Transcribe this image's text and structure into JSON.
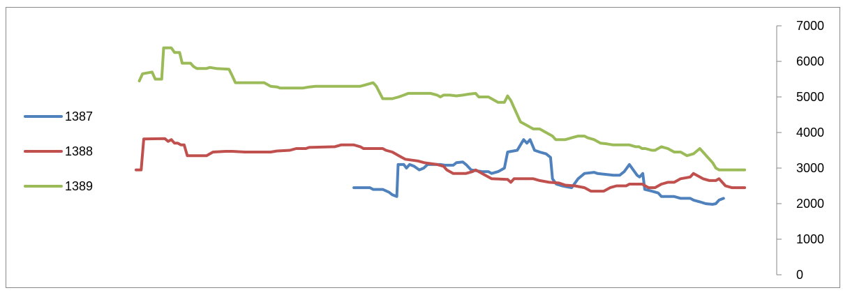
{
  "chart_data": {
    "type": "line",
    "title": "",
    "xlabel": "",
    "ylabel": "",
    "y_axis_side": "right",
    "ylim": [
      0,
      7000
    ],
    "yticks": [
      0,
      1000,
      2000,
      3000,
      4000,
      5000,
      6000,
      7000
    ],
    "ytick_labels": [
      "0",
      "1000",
      "2000",
      "3000",
      "4000",
      "5000",
      "6000",
      "7000"
    ],
    "x_index_range": [
      0,
      100
    ],
    "grid": false,
    "legend_position": "left",
    "series": [
      {
        "name": "1387",
        "color": "#4f81bd",
        "points": [
          [
            34.0,
            2450
          ],
          [
            36.5,
            2450
          ],
          [
            37.0,
            2400
          ],
          [
            38.5,
            2400
          ],
          [
            39.5,
            2320
          ],
          [
            40.0,
            2250
          ],
          [
            40.7,
            2200
          ],
          [
            40.9,
            3100
          ],
          [
            41.8,
            3100
          ],
          [
            42.2,
            3000
          ],
          [
            42.7,
            3100
          ],
          [
            43.4,
            3050
          ],
          [
            44.2,
            2950
          ],
          [
            44.9,
            3000
          ],
          [
            45.5,
            3100
          ],
          [
            47.5,
            3100
          ],
          [
            48.2,
            3080
          ],
          [
            49.5,
            3080
          ],
          [
            50.0,
            3150
          ],
          [
            51.0,
            3170
          ],
          [
            51.5,
            3100
          ],
          [
            52.3,
            2950
          ],
          [
            54.0,
            2900
          ],
          [
            55.0,
            2900
          ],
          [
            55.5,
            2850
          ],
          [
            56.5,
            2900
          ],
          [
            57.0,
            2950
          ],
          [
            57.5,
            3000
          ],
          [
            58.0,
            3450
          ],
          [
            59.5,
            3500
          ],
          [
            60.0,
            3650
          ],
          [
            60.5,
            3800
          ],
          [
            61.0,
            3700
          ],
          [
            61.5,
            3800
          ],
          [
            62.2,
            3500
          ],
          [
            63.0,
            3450
          ],
          [
            64.0,
            3400
          ],
          [
            64.7,
            3300
          ],
          [
            65.0,
            2700
          ],
          [
            65.6,
            2550
          ],
          [
            66.5,
            2500
          ],
          [
            68.0,
            2450
          ],
          [
            69.0,
            2700
          ],
          [
            70.0,
            2850
          ],
          [
            71.5,
            2880
          ],
          [
            72.0,
            2850
          ],
          [
            74.5,
            2800
          ],
          [
            75.5,
            2800
          ],
          [
            76.2,
            2900
          ],
          [
            77.0,
            3100
          ],
          [
            78.2,
            2800
          ],
          [
            78.6,
            2750
          ],
          [
            79.1,
            2850
          ],
          [
            79.4,
            2400
          ],
          [
            80.5,
            2350
          ],
          [
            81.5,
            2300
          ],
          [
            82.0,
            2200
          ],
          [
            84.0,
            2200
          ],
          [
            85.0,
            2150
          ],
          [
            86.5,
            2150
          ],
          [
            87.0,
            2100
          ],
          [
            88.0,
            2050
          ],
          [
            88.9,
            2000
          ],
          [
            90.0,
            1980
          ],
          [
            90.5,
            2000
          ],
          [
            91.0,
            2100
          ],
          [
            91.7,
            2150
          ]
        ]
      },
      {
        "name": "1388",
        "color": "#c0504d",
        "points": [
          [
            0,
            2950
          ],
          [
            0.8,
            2950
          ],
          [
            1.2,
            3820
          ],
          [
            4.5,
            3830
          ],
          [
            5.0,
            3750
          ],
          [
            5.5,
            3800
          ],
          [
            6.0,
            3700
          ],
          [
            6.5,
            3700
          ],
          [
            7.0,
            3650
          ],
          [
            7.5,
            3650
          ],
          [
            8.0,
            3350
          ],
          [
            11.0,
            3350
          ],
          [
            12.0,
            3450
          ],
          [
            14.0,
            3470
          ],
          [
            15.0,
            3470
          ],
          [
            17.0,
            3450
          ],
          [
            21.0,
            3450
          ],
          [
            22.0,
            3480
          ],
          [
            24.0,
            3500
          ],
          [
            25.0,
            3550
          ],
          [
            26.5,
            3550
          ],
          [
            27.0,
            3580
          ],
          [
            31.0,
            3600
          ],
          [
            32.0,
            3650
          ],
          [
            34.0,
            3650
          ],
          [
            35.0,
            3600
          ],
          [
            35.5,
            3550
          ],
          [
            38.5,
            3550
          ],
          [
            39.0,
            3500
          ],
          [
            40.0,
            3450
          ],
          [
            41.0,
            3350
          ],
          [
            42.0,
            3250
          ],
          [
            44.0,
            3200
          ],
          [
            45.0,
            3150
          ],
          [
            47.0,
            3100
          ],
          [
            48.0,
            3050
          ],
          [
            48.5,
            2950
          ],
          [
            49.5,
            2850
          ],
          [
            51.5,
            2850
          ],
          [
            52.5,
            2900
          ],
          [
            53.0,
            2950
          ],
          [
            53.5,
            2900
          ],
          [
            54.5,
            2800
          ],
          [
            55.5,
            2700
          ],
          [
            58.0,
            2680
          ],
          [
            58.5,
            2600
          ],
          [
            59.0,
            2700
          ],
          [
            62.0,
            2700
          ],
          [
            63.0,
            2650
          ],
          [
            64.5,
            2600
          ],
          [
            66.0,
            2580
          ],
          [
            67.0,
            2520
          ],
          [
            68.5,
            2500
          ],
          [
            70.0,
            2450
          ],
          [
            71.0,
            2350
          ],
          [
            73.0,
            2350
          ],
          [
            74.0,
            2450
          ],
          [
            75.0,
            2500
          ],
          [
            76.5,
            2500
          ],
          [
            77.0,
            2550
          ],
          [
            79.0,
            2550
          ],
          [
            80.0,
            2450
          ],
          [
            81.0,
            2450
          ],
          [
            82.0,
            2550
          ],
          [
            83.0,
            2600
          ],
          [
            84.0,
            2600
          ],
          [
            85.0,
            2700
          ],
          [
            86.5,
            2750
          ],
          [
            87.0,
            2850
          ],
          [
            87.5,
            2800
          ],
          [
            88.5,
            2700
          ],
          [
            89.5,
            2650
          ],
          [
            90.5,
            2650
          ],
          [
            91.0,
            2700
          ],
          [
            91.5,
            2600
          ],
          [
            92.0,
            2500
          ],
          [
            93.0,
            2450
          ],
          [
            95.0,
            2450
          ]
        ]
      },
      {
        "name": "1389",
        "color": "#9bbb59",
        "points": [
          [
            0.5,
            5450
          ],
          [
            1.0,
            5650
          ],
          [
            2.5,
            5700
          ],
          [
            3.0,
            5500
          ],
          [
            4.0,
            5500
          ],
          [
            4.3,
            6380
          ],
          [
            5.5,
            6380
          ],
          [
            6.0,
            6250
          ],
          [
            6.8,
            6250
          ],
          [
            7.2,
            5950
          ],
          [
            8.5,
            5950
          ],
          [
            9.0,
            5850
          ],
          [
            9.5,
            5800
          ],
          [
            11.0,
            5800
          ],
          [
            11.5,
            5830
          ],
          [
            12.5,
            5800
          ],
          [
            14.5,
            5780
          ],
          [
            15.0,
            5600
          ],
          [
            15.5,
            5400
          ],
          [
            20.0,
            5400
          ],
          [
            21.0,
            5300
          ],
          [
            22.0,
            5280
          ],
          [
            22.5,
            5250
          ],
          [
            26.0,
            5250
          ],
          [
            27.0,
            5280
          ],
          [
            28.0,
            5300
          ],
          [
            30.0,
            5300
          ],
          [
            31.0,
            5300
          ],
          [
            35.0,
            5300
          ],
          [
            36.0,
            5350
          ],
          [
            37.0,
            5400
          ],
          [
            37.5,
            5300
          ],
          [
            38.5,
            4950
          ],
          [
            40.0,
            4950
          ],
          [
            41.0,
            5000
          ],
          [
            41.8,
            5050
          ],
          [
            42.5,
            5100
          ],
          [
            46.0,
            5100
          ],
          [
            47.0,
            5050
          ],
          [
            47.5,
            5000
          ],
          [
            48.0,
            5050
          ],
          [
            49.0,
            5050
          ],
          [
            50.0,
            5030
          ],
          [
            51.0,
            5050
          ],
          [
            52.0,
            5080
          ],
          [
            53.0,
            5100
          ],
          [
            53.5,
            5000
          ],
          [
            55.0,
            5000
          ],
          [
            56.5,
            4850
          ],
          [
            57.5,
            4850
          ],
          [
            58.0,
            5030
          ],
          [
            58.5,
            4900
          ],
          [
            59.0,
            4700
          ],
          [
            60.0,
            4300
          ],
          [
            61.0,
            4200
          ],
          [
            62.0,
            4100
          ],
          [
            63.0,
            4100
          ],
          [
            64.0,
            4000
          ],
          [
            65.0,
            3900
          ],
          [
            65.5,
            3800
          ],
          [
            67.0,
            3800
          ],
          [
            68.0,
            3850
          ],
          [
            69.0,
            3900
          ],
          [
            70.0,
            3900
          ],
          [
            70.5,
            3850
          ],
          [
            71.5,
            3800
          ],
          [
            72.5,
            3700
          ],
          [
            73.5,
            3680
          ],
          [
            74.5,
            3650
          ],
          [
            77.0,
            3650
          ],
          [
            78.0,
            3600
          ],
          [
            78.5,
            3600
          ],
          [
            79.0,
            3550
          ],
          [
            79.5,
            3550
          ],
          [
            80.5,
            3500
          ],
          [
            81.0,
            3500
          ],
          [
            82.0,
            3600
          ],
          [
            83.0,
            3550
          ],
          [
            84.0,
            3450
          ],
          [
            85.0,
            3450
          ],
          [
            86.0,
            3350
          ],
          [
            87.0,
            3400
          ],
          [
            88.0,
            3550
          ],
          [
            88.5,
            3450
          ],
          [
            89.0,
            3350
          ],
          [
            90.0,
            3150
          ],
          [
            90.5,
            3000
          ],
          [
            91.0,
            2950
          ],
          [
            95.0,
            2950
          ]
        ]
      }
    ]
  }
}
